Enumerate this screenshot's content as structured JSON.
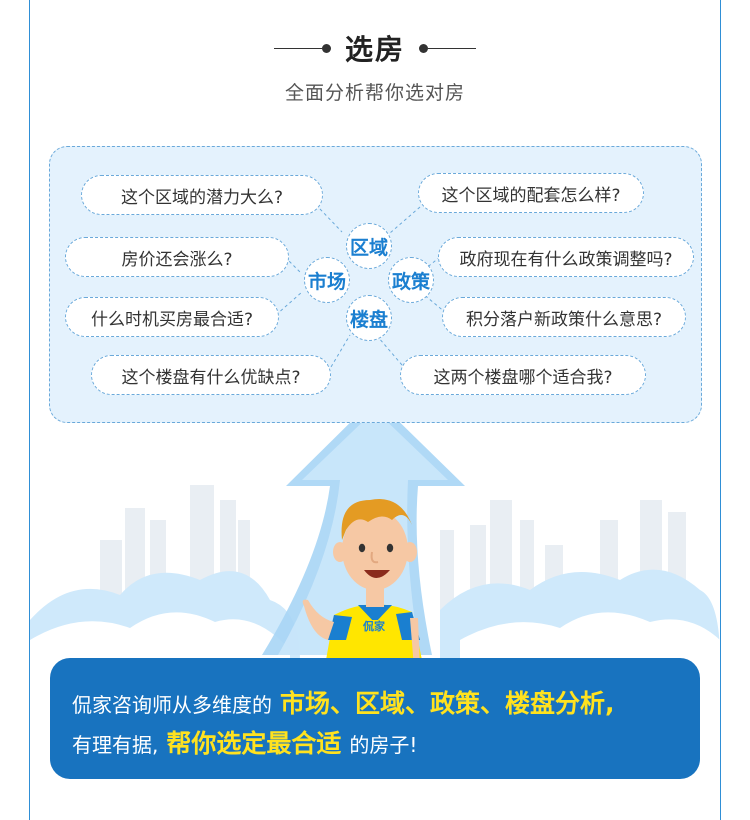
{
  "header": {
    "title": "选房",
    "subtitle": "全面分析帮你选对房"
  },
  "hubs": {
    "top": "区域",
    "left": "市场",
    "right": "政策",
    "bottom": "楼盘"
  },
  "questions": [
    "这个区域的潜力大么?",
    "房价还会涨么?",
    "什么时机买房最合适?",
    "这个楼盘有什么优缺点?",
    "这个区域的配套怎么样?",
    "政府现在有什么政策调整吗?",
    "积分落户新政策什么意思?",
    "这两个楼盘哪个适合我?"
  ],
  "mascot": {
    "shirt_logo": "侃家"
  },
  "footer": {
    "line1_prefix": "侃家咨询师从多维度的",
    "line1_highlight": "市场、区域、政策、楼盘分析,",
    "line2_prefix": "有理有据,",
    "line2_highlight": "帮你选定最合适",
    "line2_suffix": "的房子!"
  },
  "colors": {
    "brand_blue": "#1873bf",
    "highlight_yellow": "#ffe21f",
    "hub_text_blue": "#1b7fd0",
    "light_panel": "#e4f2fd"
  }
}
